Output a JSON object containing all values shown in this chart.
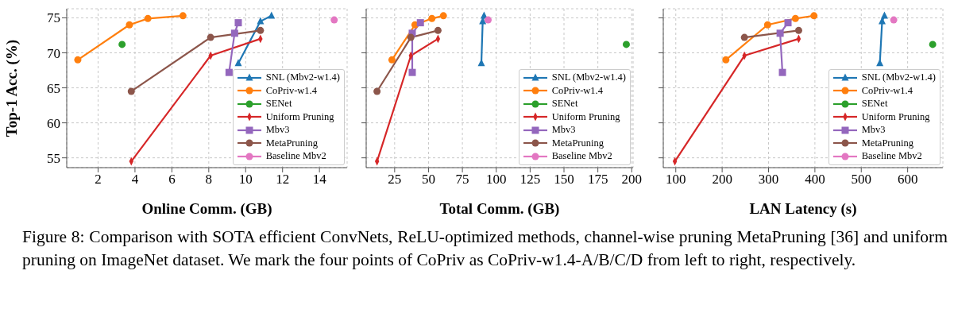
{
  "chart_data": [
    {
      "type": "line",
      "xlabel": "Online Comm. (GB)",
      "ylabel": "Top-1 Acc. (%)",
      "xlim": [
        0.3,
        15.5
      ],
      "xticks": [
        2,
        4,
        6,
        8,
        10,
        12,
        14
      ],
      "ylim": [
        53.6,
        76.3
      ],
      "yticks": [
        55,
        60,
        65,
        70,
        75
      ],
      "grid": true,
      "legend": "bottom right",
      "annotations": [
        "Figure 8: Comparison with SOTA efficient ConvNets, ReLU-optimized methods, channel-wise pruning MetaPruning [36] and uniform pruning on ImageNet dataset. We mark the four points of CoPriv as CoPriv-w1.4-A/B/C/D from left to right, respectively."
      ],
      "series": [
        {
          "name": "SNL (Mbv2-w1.4)",
          "color": "#1f77b4",
          "marker": "triangle",
          "x": [
            9.6,
            10.8,
            11.4
          ],
          "values": [
            68.5,
            74.5,
            75.3
          ]
        },
        {
          "name": "CoPriv-w1.4",
          "color": "#ff7f0e",
          "marker": "circle",
          "x": [
            0.9,
            3.7,
            4.7,
            6.6
          ],
          "values": [
            69.0,
            74.0,
            74.9,
            75.3
          ]
        },
        {
          "name": "SENet",
          "color": "#2ca02c",
          "marker": "circle",
          "x": [
            3.3
          ],
          "values": [
            71.2
          ]
        },
        {
          "name": "Uniform Pruning",
          "color": "#d62728",
          "marker": "diamond",
          "x": [
            3.8,
            8.1,
            10.8
          ],
          "values": [
            54.5,
            69.6,
            72.0
          ]
        },
        {
          "name": "Mbv3",
          "color": "#9467bd",
          "marker": "square",
          "x": [
            9.1,
            9.4,
            9.6
          ],
          "values": [
            67.2,
            72.8,
            74.3
          ]
        },
        {
          "name": "MetaPruning",
          "color": "#8c564b",
          "marker": "circle",
          "x": [
            3.8,
            8.1,
            10.8
          ],
          "values": [
            64.5,
            72.2,
            73.2
          ]
        },
        {
          "name": "Baseline Mbv2",
          "color": "#e377c2",
          "marker": "circle",
          "x": [
            14.8
          ],
          "values": [
            74.7
          ]
        }
      ]
    },
    {
      "type": "line",
      "xlabel": "Total Comm. (GB)",
      "xlim": [
        4,
        201
      ],
      "xticks": [
        25,
        50,
        75,
        100,
        125,
        150,
        175,
        200
      ],
      "ylim": [
        53.6,
        76.3
      ],
      "yticks": [
        55,
        60,
        65,
        70,
        75
      ],
      "grid": true,
      "legend": "bottom right",
      "tick_labels": "x",
      "series": [
        {
          "name": "SNL (Mbv2-w1.4)",
          "color": "#1f77b4",
          "marker": "triangle",
          "x": [
            89,
            90,
            91
          ],
          "values": [
            68.5,
            74.5,
            75.3
          ]
        },
        {
          "name": "CoPriv-w1.4",
          "color": "#ff7f0e",
          "marker": "circle",
          "x": [
            23,
            40,
            52.5,
            61
          ],
          "values": [
            69.0,
            74.0,
            74.9,
            75.3
          ]
        },
        {
          "name": "SENet",
          "color": "#2ca02c",
          "marker": "circle",
          "x": [
            196
          ],
          "values": [
            71.2
          ]
        },
        {
          "name": "Uniform Pruning",
          "color": "#d62728",
          "marker": "diamond",
          "x": [
            12,
            37,
            57
          ],
          "values": [
            54.5,
            69.6,
            72.0
          ]
        },
        {
          "name": "Mbv3",
          "color": "#9467bd",
          "marker": "square",
          "x": [
            38,
            38,
            44
          ],
          "values": [
            67.2,
            72.8,
            74.3
          ]
        },
        {
          "name": "MetaPruning",
          "color": "#8c564b",
          "marker": "circle",
          "x": [
            12,
            37,
            57
          ],
          "values": [
            64.5,
            72.2,
            73.2
          ]
        },
        {
          "name": "Baseline Mbv2",
          "color": "#e377c2",
          "marker": "circle",
          "x": [
            94
          ],
          "values": [
            74.7
          ]
        }
      ]
    },
    {
      "type": "line",
      "xlabel": "LAN Latency (s)",
      "xlim": [
        73,
        676
      ],
      "xticks": [
        100,
        200,
        300,
        400,
        500,
        600
      ],
      "ylim": [
        53.6,
        76.3
      ],
      "yticks": [
        55,
        60,
        65,
        70,
        75
      ],
      "grid": true,
      "legend": "bottom right",
      "tick_labels": "x",
      "series": [
        {
          "name": "SNL (Mbv2-w1.4)",
          "color": "#1f77b4",
          "marker": "triangle",
          "x": [
            540,
            545,
            550
          ],
          "values": [
            68.5,
            74.5,
            75.3
          ]
        },
        {
          "name": "CoPriv-w1.4",
          "color": "#ff7f0e",
          "marker": "circle",
          "x": [
            208,
            298,
            358,
            398
          ],
          "values": [
            69.0,
            74.0,
            74.9,
            75.3
          ]
        },
        {
          "name": "SENet",
          "color": "#2ca02c",
          "marker": "circle",
          "x": [
            654
          ],
          "values": [
            71.2
          ]
        },
        {
          "name": "Uniform Pruning",
          "color": "#d62728",
          "marker": "diamond",
          "x": [
            98,
            248,
            365
          ],
          "values": [
            54.5,
            69.6,
            72.0
          ]
        },
        {
          "name": "Mbv3",
          "color": "#9467bd",
          "marker": "square",
          "x": [
            330,
            325,
            342
          ],
          "values": [
            67.2,
            72.8,
            74.3
          ]
        },
        {
          "name": "MetaPruning",
          "color": "#8c564b",
          "marker": "circle",
          "x": [
            248,
            365
          ],
          "values": [
            72.2,
            73.2
          ]
        },
        {
          "name": "Baseline Mbv2",
          "color": "#e377c2",
          "marker": "circle",
          "x": [
            570
          ],
          "values": [
            74.7
          ]
        }
      ]
    }
  ]
}
